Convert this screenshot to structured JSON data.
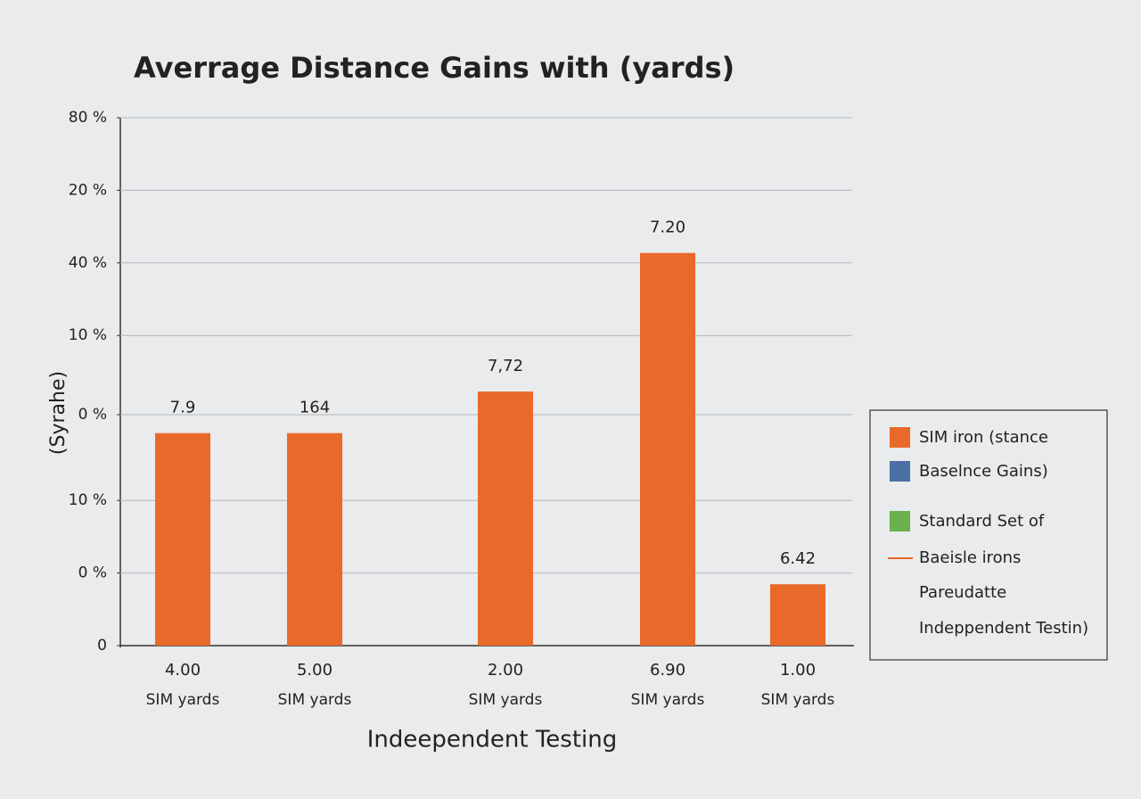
{
  "chart_data": {
    "type": "bar",
    "title": "Averrage Distance Gains with (yards)",
    "y_label": "(Syrahe)",
    "x_label": "Indeependent Testing",
    "categories": [
      "4.00",
      "5.00",
      "2.00",
      "6.90",
      "1.00"
    ],
    "category_sublabels": [
      "SIM yards",
      "SIM yards",
      "SIM yards",
      "SIM yards",
      "SIM yards"
    ],
    "series": [
      {
        "name": "SIM iron (stance",
        "color": "#e8692a",
        "values": [
          32.2,
          32.2,
          38.5,
          59.5,
          9.3
        ]
      }
    ],
    "bar_annotations": [
      "7.9",
      "164",
      "7,72",
      "7.20",
      "6.42"
    ],
    "ylim": [
      0,
      80
    ],
    "yticks": [
      0,
      {
        "value": 11,
        "label": "0 %"
      },
      {
        "value": 22,
        "label": "10 %"
      },
      {
        "value": 35,
        "label": "0 %"
      },
      {
        "value": 47,
        "label": "10 %"
      },
      {
        "value": 58,
        "label": "40 %"
      },
      {
        "value": 69,
        "label": "20 %"
      },
      {
        "value": 80,
        "label": "80 %"
      }
    ],
    "grid": true,
    "legend": [
      {
        "label": "SIM iron (stance",
        "color": "#e8692a",
        "marker": "square"
      },
      {
        "label": "Baselnce Gains)",
        "color": "#4a6fa5",
        "marker": "square"
      },
      {
        "label": "Standard Set of",
        "color": "#6ab04c",
        "marker": "square"
      },
      {
        "label": "Baeisle irons",
        "color": "#e8692a",
        "marker": "line"
      },
      {
        "label": "Pareudatte",
        "color": "none",
        "marker": "none"
      },
      {
        "label": "Indeppendent Testin)",
        "color": "none",
        "marker": "none"
      }
    ]
  }
}
